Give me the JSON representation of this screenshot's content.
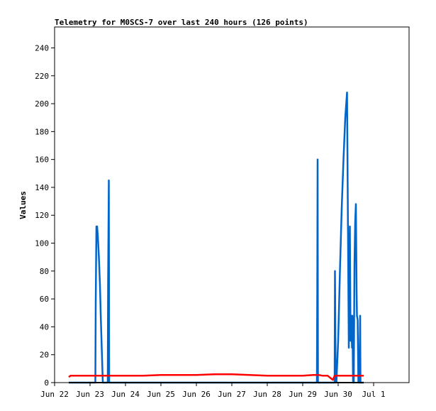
{
  "chart_data": {
    "type": "line",
    "title": "Telemetry for M0SCS-7 over last 240 hours (126 points)",
    "xlabel": "",
    "ylabel": "Values",
    "xlim": [
      22.0,
      32.0
    ],
    "ylim": [
      0,
      255
    ],
    "x_ticks": [
      {
        "value": 22,
        "label": "Jun 22"
      },
      {
        "value": 23,
        "label": "Jun 23"
      },
      {
        "value": 24,
        "label": "Jun 24"
      },
      {
        "value": 25,
        "label": "Jun 25"
      },
      {
        "value": 26,
        "label": "Jun 26"
      },
      {
        "value": 27,
        "label": "Jun 27"
      },
      {
        "value": 28,
        "label": "Jun 28"
      },
      {
        "value": 29,
        "label": "Jun 29"
      },
      {
        "value": 30,
        "label": "Jun 30"
      },
      {
        "value": 31,
        "label": "Jul 1"
      }
    ],
    "y_ticks": [
      0,
      20,
      40,
      60,
      80,
      100,
      120,
      140,
      160,
      180,
      200,
      220,
      240
    ],
    "grid": false,
    "legend": "none",
    "series": [
      {
        "color": "#0066cc",
        "x": [
          22.4,
          23.15,
          23.16,
          23.18,
          23.2,
          23.22,
          23.25,
          23.28,
          23.3,
          23.33,
          23.36,
          23.38,
          23.4,
          23.5,
          23.51,
          23.53,
          23.54,
          23.56,
          23.57,
          29.4,
          29.41,
          29.42,
          29.43,
          29.44,
          29.45,
          29.9,
          29.91,
          29.93,
          29.95,
          30.0,
          30.05,
          30.1,
          30.15,
          30.2,
          30.25,
          30.3,
          30.33,
          30.35,
          30.37,
          30.39,
          30.4,
          30.41,
          30.42,
          30.44,
          30.46,
          30.48,
          30.5,
          30.52,
          30.53,
          30.55,
          30.57,
          30.6,
          30.62,
          30.63,
          30.64,
          30.66,
          30.68,
          30.7,
          30.72
        ],
        "values": [
          0,
          0,
          56,
          112,
          112,
          105,
          90,
          70,
          50,
          25,
          0,
          0,
          0,
          0,
          72,
          145,
          0,
          0,
          0,
          0,
          65,
          160,
          0,
          0,
          0,
          0,
          80,
          0,
          0,
          30,
          80,
          125,
          160,
          190,
          208,
          25,
          112,
          30,
          48,
          25,
          48,
          25,
          0,
          0,
          85,
          115,
          128,
          65,
          48,
          45,
          0,
          0,
          48,
          0,
          0,
          0,
          0,
          0,
          0
        ]
      },
      {
        "color": "#ff0000",
        "x": [
          22.4,
          22.45,
          22.7,
          23.0,
          23.2,
          23.6,
          24.0,
          24.5,
          25.0,
          25.5,
          26.0,
          26.5,
          27.0,
          27.5,
          28.0,
          28.5,
          29.0,
          29.3,
          29.45,
          29.55,
          29.7,
          29.8,
          29.85,
          29.9,
          30.0,
          30.2,
          30.5,
          30.72
        ],
        "values": [
          4,
          5,
          5,
          5,
          5,
          5,
          5,
          5,
          5.5,
          5.5,
          5.5,
          6,
          6,
          5.5,
          5,
          5,
          5,
          5.5,
          5.5,
          5,
          5,
          3,
          2,
          5,
          5,
          5,
          5,
          5
        ]
      },
      {
        "color": "#000000",
        "x": [
          22.4,
          30.72
        ],
        "values": [
          0,
          0
        ]
      }
    ]
  }
}
